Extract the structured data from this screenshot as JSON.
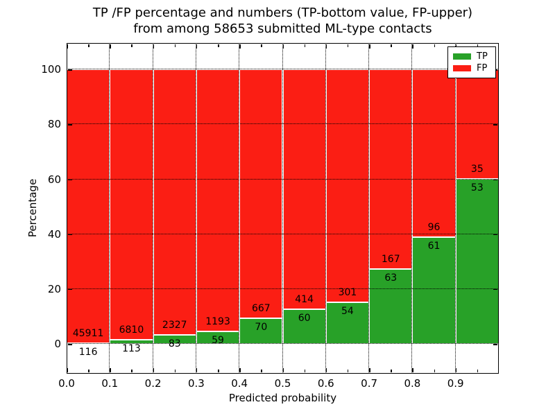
{
  "chart_data": {
    "type": "bar",
    "stacked": true,
    "normalized_to_100_percent": true,
    "title_line1": "TP /FP percentage and numbers (TP-bottom value, FP-upper)",
    "title_line2": "from among 58653 submitted ML-type contacts",
    "xlabel": "Predicted probability",
    "ylabel": "Percentage",
    "total_submitted": 58653,
    "xlim": [
      0.0,
      1.0
    ],
    "ylim": [
      -10.8,
      109.6
    ],
    "xticks": [
      "0.0",
      "0.1",
      "0.2",
      "0.3",
      "0.4",
      "0.5",
      "0.6",
      "0.7",
      "0.8",
      "0.9"
    ],
    "x_minor_tick_step": 0.05,
    "yticks": [
      0,
      20,
      40,
      60,
      80,
      100
    ],
    "grid": {
      "style": "dotted",
      "color": "#000000",
      "x_values": [
        0.1,
        0.2,
        0.3,
        0.4,
        0.5,
        0.6,
        0.7,
        0.8,
        0.9
      ],
      "y_values": [
        0,
        20,
        40,
        60,
        80,
        100
      ]
    },
    "bin_starts": [
      0.0,
      0.1,
      0.2,
      0.3,
      0.4,
      0.5,
      0.6,
      0.7,
      0.8,
      0.9
    ],
    "bin_width": 0.1,
    "series": [
      {
        "name": "TP",
        "color": "#28a128",
        "counts": [
          116,
          113,
          83,
          59,
          70,
          60,
          54,
          63,
          61,
          53
        ]
      },
      {
        "name": "FP",
        "color": "#fb1e14",
        "counts": [
          45911,
          6810,
          2327,
          1193,
          667,
          414,
          301,
          167,
          96,
          35
        ]
      }
    ],
    "tp_percent_of_bin": [
      0.25,
      1.63,
      3.44,
      4.71,
      9.5,
      12.66,
      15.21,
      27.39,
      38.85,
      60.23
    ],
    "bar_edge_color": "#ffffff",
    "legend": {
      "position": "upper-right",
      "entries": [
        "TP",
        "FP"
      ]
    }
  }
}
